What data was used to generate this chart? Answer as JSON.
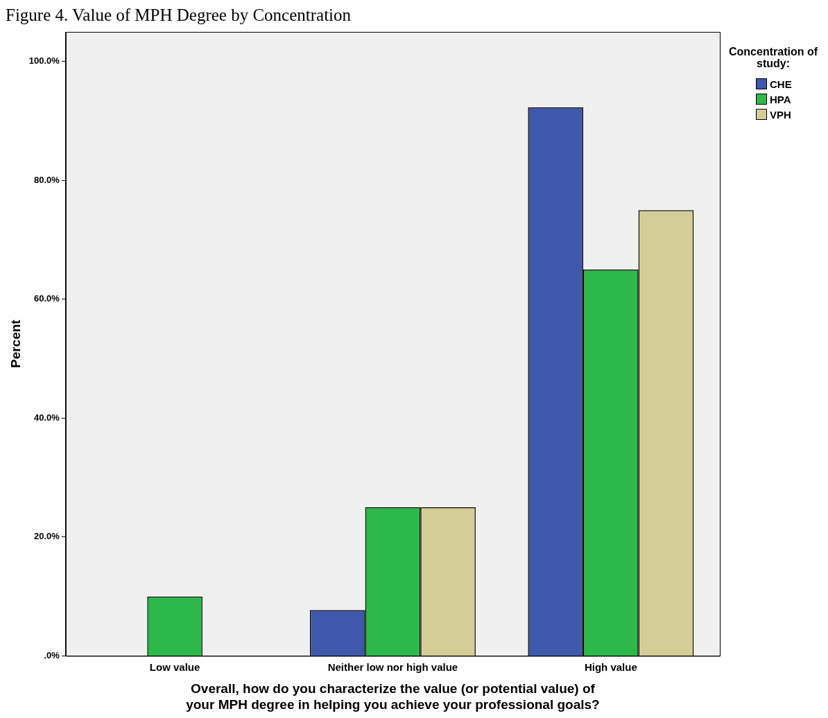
{
  "chart_data": {
    "type": "bar",
    "title": "Figure 4. Value of MPH Degree by Concentration",
    "xlabel": "Overall, how do you characterize the value (or potential value) of your MPH degree in helping you achieve your professional goals?",
    "ylabel": "Percent",
    "legend_title": "Concentration of study:",
    "categories": [
      "Low value",
      "Neither low nor high value",
      "High value"
    ],
    "series": [
      {
        "name": "CHE",
        "color": "#3e58ac",
        "values": [
          0,
          7.7,
          92.3
        ]
      },
      {
        "name": "HPA",
        "color": "#2db84a",
        "values": [
          10,
          25,
          65
        ]
      },
      {
        "name": "VPH",
        "color": "#d4cd97",
        "values": [
          0,
          25,
          75
        ]
      }
    ],
    "ylim": [
      0,
      105
    ],
    "yticks": [
      {
        "value": 0,
        "label": ".0%"
      },
      {
        "value": 20,
        "label": "20.0%"
      },
      {
        "value": 40,
        "label": "40.0%"
      },
      {
        "value": 60,
        "label": "60.0%"
      },
      {
        "value": 80,
        "label": "80.0%"
      },
      {
        "value": 100,
        "label": "100.0%"
      }
    ],
    "grid": false,
    "legend": "top right"
  }
}
